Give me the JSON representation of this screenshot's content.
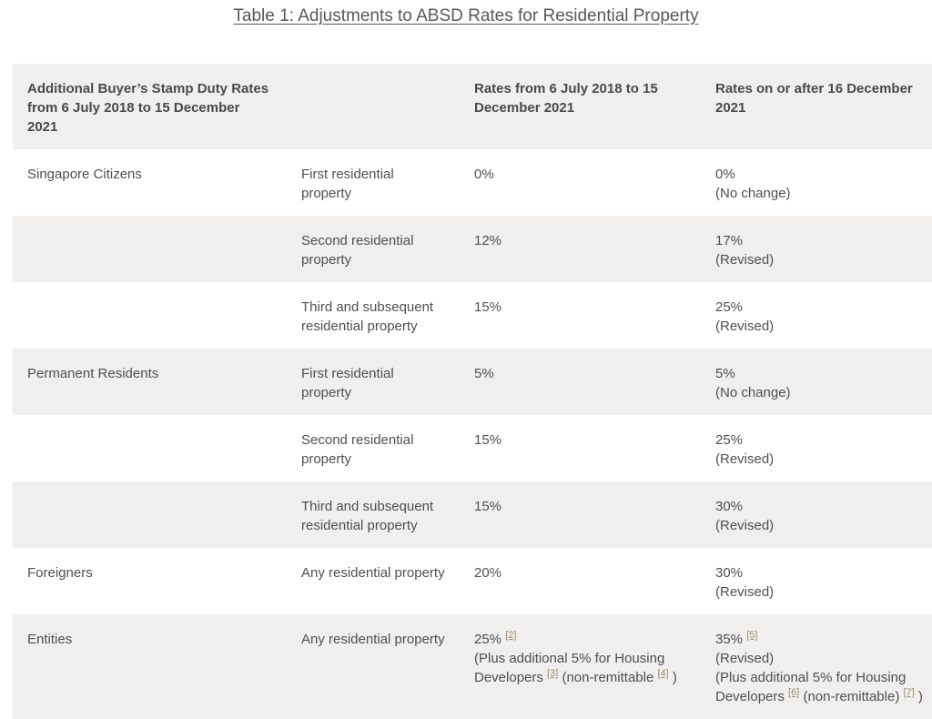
{
  "page": {
    "title": "Table 1: Adjustments to ABSD Rates for Residential Property"
  },
  "table": {
    "headers": [
      {
        "lines": [
          [
            {
              "text": "Additional Buyer’s Stamp Duty Rates"
            }
          ],
          [
            {
              "text": "from 6 July 2018 to 15 December 2021"
            }
          ]
        ]
      },
      {
        "lines": []
      },
      {
        "lines": [
          [
            {
              "text": "Rates from 6 July 2018 to 15"
            }
          ],
          [
            {
              "text": "December 2021"
            }
          ]
        ]
      },
      {
        "lines": [
          [
            {
              "text": "Rates on or after 16 December"
            }
          ],
          [
            {
              "text": "2021"
            }
          ]
        ]
      }
    ],
    "rows": [
      {
        "cells": [
          {
            "lines": [
              [
                {
                  "text": "Singapore Citizens"
                }
              ]
            ]
          },
          {
            "lines": [
              [
                {
                  "text": "First residential property"
                }
              ]
            ]
          },
          {
            "lines": [
              [
                {
                  "text": "0%"
                }
              ]
            ]
          },
          {
            "lines": [
              [
                {
                  "text": "0%"
                }
              ],
              [
                {
                  "text": "(No change)"
                }
              ]
            ]
          }
        ]
      },
      {
        "cells": [
          {
            "lines": []
          },
          {
            "lines": [
              [
                {
                  "text": "Second residential"
                }
              ],
              [
                {
                  "text": "property"
                }
              ]
            ]
          },
          {
            "lines": [
              [
                {
                  "text": "12%"
                }
              ]
            ]
          },
          {
            "lines": [
              [
                {
                  "text": "17%"
                }
              ],
              [
                {
                  "text": "(Revised)"
                }
              ]
            ]
          }
        ]
      },
      {
        "cells": [
          {
            "lines": []
          },
          {
            "lines": [
              [
                {
                  "text": "Third and subsequent"
                }
              ],
              [
                {
                  "text": "residential property"
                }
              ]
            ]
          },
          {
            "lines": [
              [
                {
                  "text": "15%"
                }
              ]
            ]
          },
          {
            "lines": [
              [
                {
                  "text": "25%"
                }
              ],
              [
                {
                  "text": "(Revised)"
                }
              ]
            ]
          }
        ]
      },
      {
        "cells": [
          {
            "lines": [
              [
                {
                  "text": "Permanent Residents"
                }
              ]
            ]
          },
          {
            "lines": [
              [
                {
                  "text": "First residential property"
                }
              ]
            ]
          },
          {
            "lines": [
              [
                {
                  "text": "5%"
                }
              ]
            ]
          },
          {
            "lines": [
              [
                {
                  "text": "5%"
                }
              ],
              [
                {
                  "text": "(No change)"
                }
              ]
            ]
          }
        ]
      },
      {
        "cells": [
          {
            "lines": []
          },
          {
            "lines": [
              [
                {
                  "text": "Second residential"
                }
              ],
              [
                {
                  "text": "property"
                }
              ]
            ]
          },
          {
            "lines": [
              [
                {
                  "text": "15%"
                }
              ]
            ]
          },
          {
            "lines": [
              [
                {
                  "text": "25%"
                }
              ],
              [
                {
                  "text": "(Revised)"
                }
              ]
            ]
          }
        ]
      },
      {
        "cells": [
          {
            "lines": []
          },
          {
            "lines": [
              [
                {
                  "text": "Third and subsequent"
                }
              ],
              [
                {
                  "text": "residential property"
                }
              ]
            ]
          },
          {
            "lines": [
              [
                {
                  "text": "15%"
                }
              ]
            ]
          },
          {
            "lines": [
              [
                {
                  "text": "30%"
                }
              ],
              [
                {
                  "text": "(Revised)"
                }
              ]
            ]
          }
        ]
      },
      {
        "cells": [
          {
            "lines": [
              [
                {
                  "text": "Foreigners"
                }
              ]
            ]
          },
          {
            "lines": [
              [
                {
                  "text": "Any residential property"
                }
              ]
            ]
          },
          {
            "lines": [
              [
                {
                  "text": "20%"
                }
              ]
            ]
          },
          {
            "lines": [
              [
                {
                  "text": "30%"
                }
              ],
              [
                {
                  "text": "(Revised)"
                }
              ]
            ]
          }
        ]
      },
      {
        "cells": [
          {
            "lines": [
              [
                {
                  "text": "Entities"
                }
              ]
            ]
          },
          {
            "lines": [
              [
                {
                  "text": "Any residential property"
                }
              ]
            ]
          },
          {
            "lines": [
              [
                {
                  "text": "25% "
                },
                {
                  "sup": "2"
                }
              ],
              [
                {
                  "text": "(Plus additional 5% for Housing"
                }
              ],
              [
                {
                  "text": "Developers "
                },
                {
                  "sup": "3"
                },
                {
                  "text": " (non-remittable "
                },
                {
                  "sup": "4"
                },
                {
                  "text": " )"
                }
              ]
            ]
          },
          {
            "lines": [
              [
                {
                  "text": "35% "
                },
                {
                  "sup": "5"
                }
              ],
              [
                {
                  "text": "(Revised)"
                }
              ],
              [
                {
                  "text": "(Plus additional 5% for Housing"
                }
              ],
              [
                {
                  "text": "Developers "
                },
                {
                  "sup": "6"
                },
                {
                  "text": " (non-remittable) "
                },
                {
                  "sup": "7"
                },
                {
                  "text": " )"
                }
              ]
            ]
          }
        ]
      }
    ]
  },
  "colors": {
    "shaded_row_bg": "#f0efed",
    "body_text": "#4f4f4f",
    "title_text": "#58595b",
    "footnote_link": "#9b8e72"
  }
}
